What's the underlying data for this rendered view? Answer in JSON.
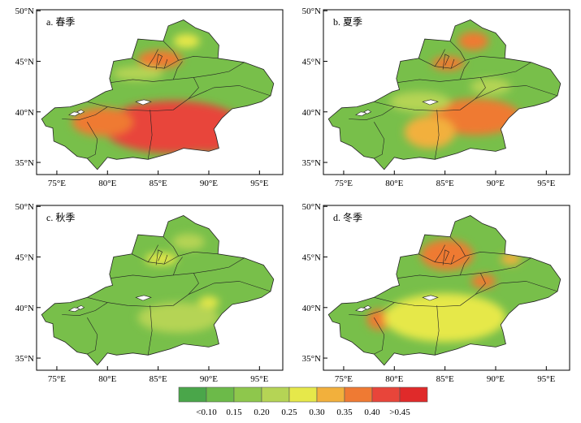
{
  "panels": [
    {
      "label": "a. 春季",
      "lat_ticks": [
        "50°N",
        "45°N",
        "40°N",
        "35°N"
      ],
      "lon_ticks": [
        "75°E",
        "80°E",
        "85°E",
        "90°E",
        "95°E"
      ],
      "hotspots": [
        {
          "lon": 86.5,
          "lat": 38.5,
          "rx": 7,
          "ry": 2.6,
          "level": 7
        },
        {
          "lon": 79.5,
          "lat": 39.0,
          "rx": 3,
          "ry": 1.4,
          "level": 6
        },
        {
          "lon": 90.0,
          "lat": 37.3,
          "rx": 2.5,
          "ry": 1.3,
          "level": 7
        },
        {
          "lon": 85.2,
          "lat": 45.2,
          "rx": 2.2,
          "ry": 0.9,
          "level": 6
        },
        {
          "lon": 87.8,
          "lat": 47.0,
          "rx": 1.3,
          "ry": 0.7,
          "level": 4
        },
        {
          "lon": 83.0,
          "lat": 43.8,
          "rx": 2.5,
          "ry": 0.7,
          "level": 3
        }
      ]
    },
    {
      "label": "b. 夏季",
      "lat_ticks": [
        "50°N",
        "45°N",
        "40°N",
        "35°N"
      ],
      "lon_ticks": [
        "75°E",
        "80°E",
        "85°E",
        "90°E",
        "95°E"
      ],
      "hotspots": [
        {
          "lon": 88.0,
          "lat": 39.5,
          "rx": 4.5,
          "ry": 1.8,
          "level": 6
        },
        {
          "lon": 83.5,
          "lat": 38.0,
          "rx": 2.5,
          "ry": 1.6,
          "level": 5
        },
        {
          "lon": 87.8,
          "lat": 47.0,
          "rx": 1.5,
          "ry": 0.9,
          "level": 6
        },
        {
          "lon": 85.3,
          "lat": 44.8,
          "rx": 1.6,
          "ry": 0.7,
          "level": 6
        },
        {
          "lon": 82.5,
          "lat": 41.0,
          "rx": 3.0,
          "ry": 1.0,
          "level": 3
        },
        {
          "lon": 89.5,
          "lat": 42.5,
          "rx": 2.0,
          "ry": 0.8,
          "level": 3
        }
      ]
    },
    {
      "label": "c. 秋季",
      "lat_ticks": [
        "50°N",
        "45°N",
        "40°N",
        "35°N"
      ],
      "lon_ticks": [
        "75°E",
        "80°E",
        "85°E",
        "90°E",
        "95°E"
      ],
      "hotspots": [
        {
          "lon": 85.3,
          "lat": 44.8,
          "rx": 1.6,
          "ry": 0.6,
          "level": 4
        },
        {
          "lon": 90.0,
          "lat": 40.5,
          "rx": 1.0,
          "ry": 0.6,
          "level": 4
        },
        {
          "lon": 87.0,
          "lat": 39.0,
          "rx": 4.0,
          "ry": 1.5,
          "level": 3
        },
        {
          "lon": 88.0,
          "lat": 46.5,
          "rx": 1.6,
          "ry": 0.8,
          "level": 3
        }
      ]
    },
    {
      "label": "d. 冬季",
      "lat_ticks": [
        "50°N",
        "45°N",
        "40°N",
        "35°N"
      ],
      "lon_ticks": [
        "75°E",
        "80°E",
        "85°E",
        "90°E",
        "95°E"
      ],
      "hotspots": [
        {
          "lon": 85.2,
          "lat": 45.2,
          "rx": 1.6,
          "ry": 1.0,
          "level": 8
        },
        {
          "lon": 85.2,
          "lat": 45.2,
          "rx": 2.6,
          "ry": 1.5,
          "level": 6
        },
        {
          "lon": 78.5,
          "lat": 38.8,
          "rx": 1.2,
          "ry": 1.0,
          "level": 6
        },
        {
          "lon": 88.8,
          "lat": 42.6,
          "rx": 1.2,
          "ry": 0.7,
          "level": 6
        },
        {
          "lon": 91.5,
          "lat": 44.8,
          "rx": 1.0,
          "ry": 0.6,
          "level": 5
        },
        {
          "lon": 85.0,
          "lat": 39.0,
          "rx": 6.0,
          "ry": 2.4,
          "level": 4
        }
      ]
    }
  ],
  "legend": {
    "colors": [
      "#4aa64a",
      "#6cba49",
      "#8ec74c",
      "#b5d455",
      "#e6e84a",
      "#f2b03c",
      "#ef7a33",
      "#e8453a",
      "#e02a2a"
    ],
    "labels": [
      "<0.10",
      "0.15",
      "0.20",
      "0.25",
      "0.30",
      "0.35",
      "0.40",
      ">0.45"
    ]
  },
  "colors": {
    "base_fill": "#78bf4a",
    "boundary": "#222222"
  }
}
